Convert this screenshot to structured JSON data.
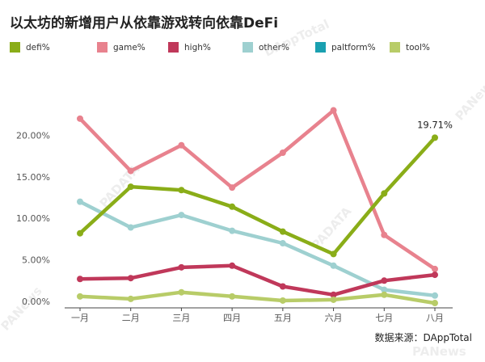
{
  "chart_data": {
    "type": "line",
    "title": "以太坊的新增用户从依靠游戏转向依靠DeFi",
    "categories": [
      "一月",
      "二月",
      "三月",
      "四月",
      "五月",
      "六月",
      "七月",
      "八月"
    ],
    "ylim": [
      0,
      0.25
    ],
    "yticks": [
      {
        "value": 0,
        "label": "0.00%"
      },
      {
        "value": 0.05,
        "label": "5.00%"
      },
      {
        "value": 0.1,
        "label": "10.00%"
      },
      {
        "value": 0.15,
        "label": "15.00%"
      },
      {
        "value": 0.2,
        "label": "20.00%"
      }
    ],
    "grid": false,
    "legend_position": "top",
    "series": [
      {
        "name": "defi%",
        "color": "#8aad18",
        "values": [
          0.082,
          0.138,
          0.134,
          0.114,
          0.084,
          0.057,
          0.13,
          0.1971
        ]
      },
      {
        "name": "game%",
        "color": "#e8828e",
        "values": [
          0.22,
          0.157,
          0.188,
          0.137,
          0.179,
          0.23,
          0.08,
          0.039
        ]
      },
      {
        "name": "high%",
        "color": "#c0385a",
        "values": [
          0.027,
          0.028,
          0.041,
          0.043,
          0.018,
          0.008,
          0.025,
          0.032
        ]
      },
      {
        "name": "other%",
        "color": "#9ed0d0",
        "values": [
          0.12,
          0.089,
          0.104,
          0.085,
          0.07,
          0.043,
          0.014,
          0.007
        ]
      },
      {
        "name": "paltform%",
        "color": "#1aa0b0",
        "values": [
          null,
          null,
          null,
          null,
          null,
          null,
          null,
          null
        ]
      },
      {
        "name": "tool%",
        "color": "#b8cc68",
        "values": [
          0.006,
          0.003,
          0.011,
          0.006,
          0.001,
          0.002,
          0.008,
          -0.002
        ]
      }
    ],
    "annotations": [
      {
        "series": "defi%",
        "index": 7,
        "label": "19.71%"
      }
    ],
    "source": "数据来源：DAppTotal"
  },
  "watermarks": [
    "DAppTotal",
    "PADATA",
    "PADATA",
    "PANews",
    "PANews",
    "PANews"
  ]
}
